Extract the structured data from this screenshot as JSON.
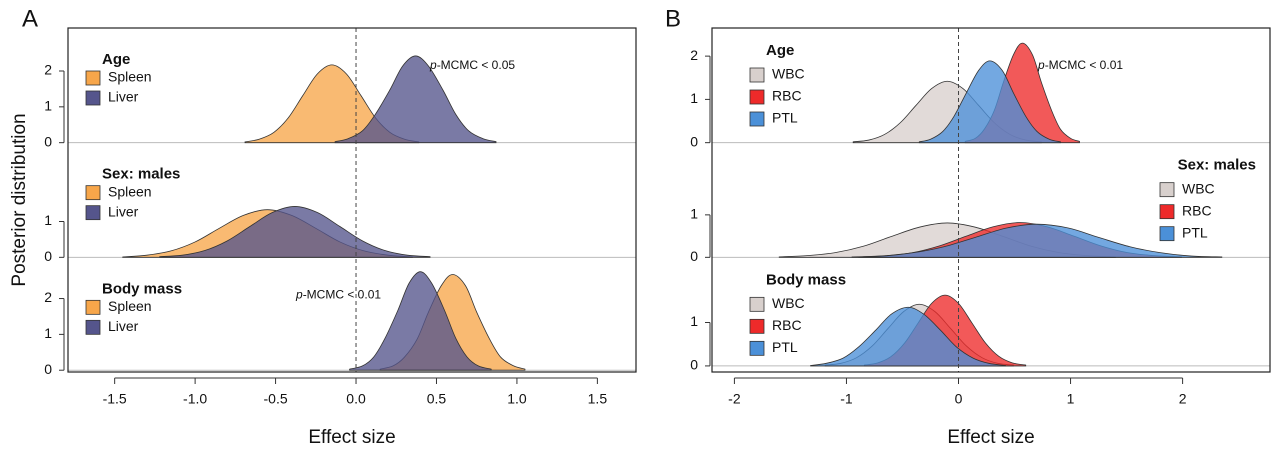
{
  "chart_data": [
    {
      "type": "density",
      "label": "A",
      "xlabel": "Effect size",
      "ylabel": "Posterior distribution",
      "xlim": [
        -1.79,
        1.74
      ],
      "xticks": [
        -1.5,
        {
          "value": -1.0,
          "label": "-1.0"
        },
        -0.5,
        {
          "value": 0.0,
          "label": "0.0"
        },
        0.5,
        {
          "value": 1.0,
          "label": "1.0"
        },
        1.5
      ],
      "rows": [
        {
          "title": "Age",
          "legend": "upper left",
          "annotation_italic": "p",
          "annotation": "-MCMC < 0.05",
          "ylim": [
            0,
            3.2
          ],
          "yticks": [
            0,
            1,
            2
          ],
          "series": [
            {
              "name": "Spleen",
              "color": "#f7a64a",
              "x": [
                -0.69,
                -0.6,
                -0.51,
                -0.42,
                -0.33,
                -0.24,
                -0.15,
                -0.06,
                0.03,
                0.12,
                0.21,
                0.3,
                0.39
              ],
              "values": [
                0.02,
                0.1,
                0.29,
                0.7,
                1.32,
                1.92,
                2.17,
                1.92,
                1.32,
                0.7,
                0.29,
                0.1,
                0.02
              ]
            },
            {
              "name": "Liver",
              "color": "#55558c",
              "x": [
                -0.13,
                -0.05,
                0.04,
                0.12,
                0.21,
                0.29,
                0.37,
                0.45,
                0.54,
                0.62,
                0.7,
                0.79,
                0.87
              ],
              "values": [
                0.03,
                0.11,
                0.33,
                0.79,
                1.47,
                2.14,
                2.42,
                2.14,
                1.47,
                0.79,
                0.33,
                0.11,
                0.03
              ]
            }
          ]
        },
        {
          "title": "Sex: males",
          "legend": "upper left",
          "ylim": [
            0,
            3.2
          ],
          "yticks": [
            0,
            1
          ],
          "series": [
            {
              "name": "Spleen",
              "color": "#f7a64a",
              "x": [
                -1.45,
                -1.3,
                -1.15,
                -1.0,
                -0.85,
                -0.7,
                -0.55,
                -0.4,
                -0.25,
                -0.1,
                0.05,
                0.2,
                0.35
              ],
              "values": [
                0.01,
                0.06,
                0.18,
                0.43,
                0.81,
                1.17,
                1.33,
                1.17,
                0.81,
                0.43,
                0.18,
                0.06,
                0.01
              ]
            },
            {
              "name": "Liver",
              "color": "#55558c",
              "x": [
                -1.22,
                -1.08,
                -0.94,
                -0.8,
                -0.66,
                -0.52,
                -0.38,
                -0.24,
                -0.1,
                0.04,
                0.18,
                0.32,
                0.46
              ],
              "values": [
                0.02,
                0.06,
                0.19,
                0.46,
                0.86,
                1.25,
                1.42,
                1.25,
                0.86,
                0.46,
                0.19,
                0.06,
                0.02
              ]
            }
          ]
        },
        {
          "title": "Body mass",
          "legend": "upper left",
          "annotation_italic": "p",
          "annotation": "-MCMC < 0.01",
          "ylim": [
            -0.05,
            3.15
          ],
          "yticks": [
            0,
            1,
            2
          ],
          "series": [
            {
              "name": "Spleen",
              "color": "#f7a64a",
              "x": [
                0.15,
                0.23,
                0.3,
                0.38,
                0.45,
                0.53,
                0.6,
                0.68,
                0.75,
                0.83,
                0.9,
                0.98,
                1.05
              ],
              "values": [
                0.03,
                0.12,
                0.36,
                0.87,
                1.62,
                2.36,
                2.67,
                2.36,
                1.62,
                0.87,
                0.36,
                0.12,
                0.03
              ]
            },
            {
              "name": "Liver",
              "color": "#55558c",
              "x": [
                -0.04,
                0.04,
                0.11,
                0.18,
                0.26,
                0.33,
                0.4,
                0.47,
                0.55,
                0.62,
                0.69,
                0.76,
                0.84
              ],
              "values": [
                0.03,
                0.12,
                0.37,
                0.89,
                1.67,
                2.43,
                2.75,
                2.43,
                1.67,
                0.89,
                0.37,
                0.12,
                0.03
              ]
            }
          ]
        }
      ]
    },
    {
      "type": "density",
      "label": "B",
      "xlabel": "Effect size",
      "xlim": [
        -2.2,
        2.78
      ],
      "xticks": [
        -2,
        -1,
        0,
        1,
        2
      ],
      "rows": [
        {
          "title": "Age",
          "legend": "upper left",
          "annotation_italic": "p",
          "annotation": "-MCMC < 0.01",
          "ylim": [
            0,
            2.65
          ],
          "yticks": [
            0,
            1,
            2
          ],
          "series": [
            {
              "name": "WBC",
              "color": "#d8d0cd",
              "x": [
                -0.94,
                -0.8,
                -0.66,
                -0.52,
                -0.38,
                -0.24,
                -0.1,
                0.04,
                0.18,
                0.32,
                0.46,
                0.6,
                0.74
              ],
              "values": [
                0.02,
                0.06,
                0.19,
                0.46,
                0.86,
                1.25,
                1.42,
                1.25,
                0.86,
                0.46,
                0.19,
                0.06,
                0.02
              ]
            },
            {
              "name": "RBC",
              "color": "#ee2a2a",
              "x": [
                0.06,
                0.15,
                0.23,
                0.32,
                0.4,
                0.49,
                0.57,
                0.66,
                0.74,
                0.83,
                0.91,
                1.0,
                1.08
              ],
              "values": [
                0.03,
                0.1,
                0.31,
                0.75,
                1.39,
                2.03,
                2.3,
                2.03,
                1.39,
                0.75,
                0.31,
                0.1,
                0.03
              ]
            },
            {
              "name": "PTL",
              "color": "#4b90d8",
              "x": [
                -0.35,
                -0.25,
                -0.14,
                -0.04,
                0.07,
                0.18,
                0.28,
                0.39,
                0.49,
                0.6,
                0.7,
                0.81,
                0.91
              ],
              "values": [
                0.02,
                0.08,
                0.26,
                0.61,
                1.15,
                1.67,
                1.89,
                1.67,
                1.15,
                0.61,
                0.26,
                0.08,
                0.02
              ]
            }
          ]
        },
        {
          "title": "Sex: males",
          "legend": "upper right",
          "ylim": [
            0,
            2.7
          ],
          "yticks": [
            0,
            1
          ],
          "series": [
            {
              "name": "WBC",
              "color": "#d8d0cd",
              "x": [
                -1.6,
                -1.35,
                -1.1,
                -0.85,
                -0.6,
                -0.35,
                -0.1,
                0.15,
                0.4,
                0.65,
                0.9,
                1.15,
                1.4
              ],
              "values": [
                0.01,
                0.04,
                0.11,
                0.26,
                0.49,
                0.71,
                0.81,
                0.71,
                0.49,
                0.26,
                0.11,
                0.04,
                0.01
              ]
            },
            {
              "name": "RBC",
              "color": "#ee2a2a",
              "x": [
                -0.89,
                -0.65,
                -0.41,
                -0.17,
                0.07,
                0.31,
                0.55,
                0.79,
                1.03,
                1.27,
                1.51,
                1.75,
                1.99
              ],
              "values": [
                0.01,
                0.04,
                0.11,
                0.27,
                0.5,
                0.72,
                0.82,
                0.72,
                0.5,
                0.27,
                0.11,
                0.04,
                0.01
              ]
            },
            {
              "name": "PTL",
              "color": "#4b90d8",
              "x": [
                -0.95,
                -0.68,
                -0.4,
                -0.13,
                0.15,
                0.43,
                0.7,
                0.98,
                1.25,
                1.53,
                1.8,
                2.08,
                2.35
              ],
              "values": [
                0.01,
                0.03,
                0.11,
                0.25,
                0.47,
                0.69,
                0.78,
                0.69,
                0.47,
                0.25,
                0.11,
                0.03,
                0.01
              ]
            }
          ]
        },
        {
          "title": "Body mass",
          "legend": "upper left",
          "ylim": [
            -0.14,
            2.5
          ],
          "yticks": [
            0,
            1
          ],
          "series": [
            {
              "name": "WBC",
              "color": "#d8d0cd",
              "x": [
                -1.19,
                -1.05,
                -0.91,
                -0.77,
                -0.63,
                -0.49,
                -0.35,
                -0.21,
                -0.07,
                0.07,
                0.21,
                0.35,
                0.49
              ],
              "values": [
                0.02,
                0.06,
                0.19,
                0.46,
                0.86,
                1.25,
                1.42,
                1.25,
                0.86,
                0.46,
                0.19,
                0.06,
                0.02
              ]
            },
            {
              "name": "RBC",
              "color": "#ee2a2a",
              "x": [
                -0.84,
                -0.72,
                -0.6,
                -0.48,
                -0.36,
                -0.24,
                -0.12,
                0,
                0.12,
                0.24,
                0.36,
                0.48,
                0.6
              ],
              "values": [
                0.02,
                0.07,
                0.22,
                0.53,
                0.99,
                1.44,
                1.63,
                1.44,
                0.99,
                0.53,
                0.22,
                0.07,
                0.02
              ]
            },
            {
              "name": "PTL",
              "color": "#4b90d8",
              "x": [
                -1.32,
                -1.18,
                -1.03,
                -0.89,
                -0.74,
                -0.6,
                -0.45,
                -0.31,
                -0.16,
                -0.02,
                0.13,
                0.27,
                0.42
              ],
              "values": [
                0.01,
                0.06,
                0.18,
                0.44,
                0.82,
                1.19,
                1.35,
                1.19,
                0.82,
                0.44,
                0.18,
                0.06,
                0.01
              ]
            }
          ]
        }
      ]
    }
  ]
}
